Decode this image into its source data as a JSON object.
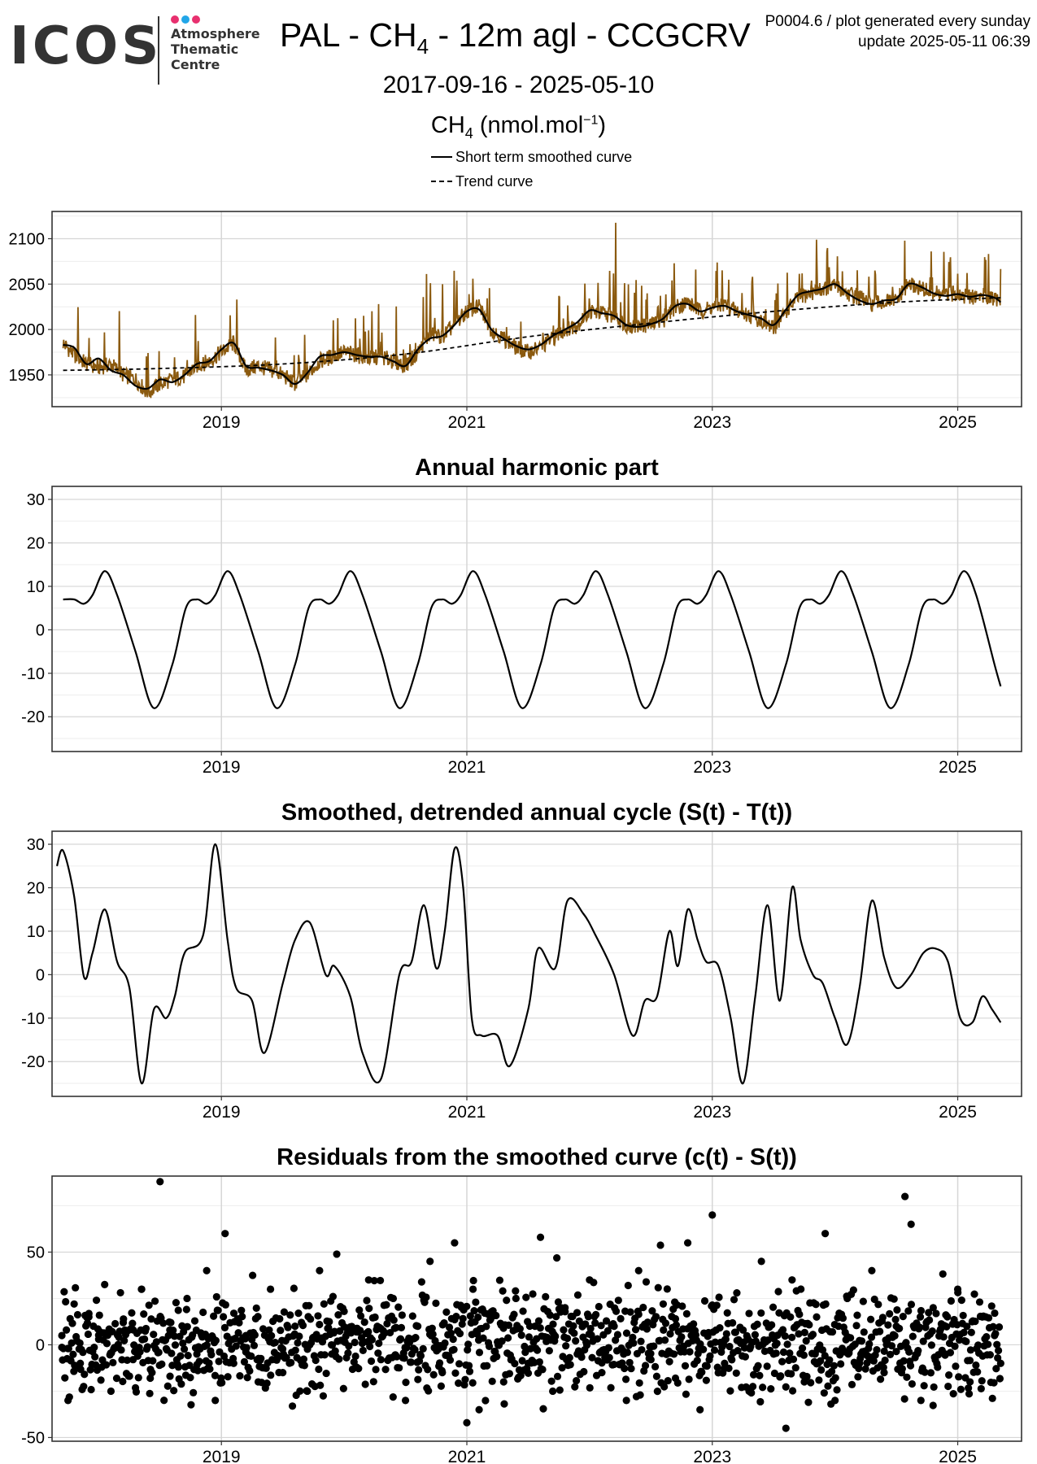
{
  "header": {
    "logo_text": "ICOS",
    "logo_tagline": "Atmosphere\nThematic\nCentre",
    "logo_dot_colors": [
      "#e8306f",
      "#22a6e8",
      "#e8306f"
    ],
    "title_pre": "PAL - CH",
    "title_sub": "4",
    "title_post": " - 12m agl - CCGCRV",
    "meta_line1": "P0004.6 / plot generated every sunday",
    "meta_line2": "update  2025-05-11 06:39",
    "date_range": "2017-09-16 - 2025-05-10",
    "unit_pre": "CH",
    "unit_sub": "4",
    "unit_mid": " (nmol.mol",
    "unit_sup": "−1",
    "unit_post": ")"
  },
  "legend": {
    "items": [
      {
        "label": "Short term smoothed curve",
        "style": "solid"
      },
      {
        "label": "Trend curve",
        "style": "dashed"
      }
    ]
  },
  "colors": {
    "observations": "#8b5a0f",
    "curves": "#000000",
    "grid_major": "#d6d6d6",
    "grid_minor": "#eeeeee",
    "panel_border": "#333333"
  },
  "chart_data": [
    {
      "id": "ch4",
      "type": "line",
      "title": "",
      "xlabel": "",
      "ylabel": "",
      "xlim": [
        2017.62,
        2025.52
      ],
      "ylim": [
        1915,
        2130
      ],
      "xticks": [
        2019,
        2021,
        2023,
        2025
      ],
      "yticks": [
        1950,
        2000,
        2050,
        2100
      ],
      "grid": true,
      "series": [
        {
          "name": "observations",
          "style": "daily",
          "x": [
            2017.71,
            2017.8,
            2017.9,
            2018.0,
            2018.1,
            2018.2,
            2018.3,
            2018.4,
            2018.5,
            2018.6,
            2018.7,
            2018.8,
            2018.9,
            2019.0,
            2019.1,
            2019.2,
            2019.3,
            2019.4,
            2019.5,
            2019.6,
            2019.7,
            2019.8,
            2019.9,
            2020.0,
            2020.1,
            2020.2,
            2020.3,
            2020.4,
            2020.5,
            2020.6,
            2020.7,
            2020.8,
            2020.9,
            2021.0,
            2021.1,
            2021.2,
            2021.3,
            2021.4,
            2021.5,
            2021.6,
            2021.7,
            2021.8,
            2021.9,
            2022.0,
            2022.1,
            2022.2,
            2022.3,
            2022.4,
            2022.5,
            2022.6,
            2022.7,
            2022.8,
            2022.9,
            2023.0,
            2023.1,
            2023.2,
            2023.3,
            2023.4,
            2023.5,
            2023.6,
            2023.7,
            2023.8,
            2023.9,
            2024.0,
            2024.1,
            2024.2,
            2024.3,
            2024.4,
            2024.5,
            2024.6,
            2024.7,
            2024.8,
            2024.9,
            2025.0,
            2025.1,
            2025.2,
            2025.3,
            2025.35
          ],
          "y": [
            1985,
            1972,
            1962,
            1958,
            1962,
            1950,
            1945,
            1930,
            1940,
            1945,
            1948,
            1960,
            1965,
            1975,
            1985,
            1955,
            1960,
            1955,
            1950,
            1940,
            1950,
            1965,
            1970,
            1975,
            1972,
            1968,
            1970,
            1965,
            1960,
            1975,
            1995,
            1992,
            2005,
            2020,
            2025,
            2000,
            1990,
            1980,
            1975,
            1980,
            1990,
            2000,
            2005,
            2020,
            2018,
            2015,
            2005,
            2003,
            2005,
            2010,
            2025,
            2030,
            2020,
            2025,
            2028,
            2020,
            2015,
            2010,
            2000,
            2020,
            2035,
            2040,
            2045,
            2048,
            2040,
            2035,
            2028,
            2030,
            2032,
            2050,
            2045,
            2040,
            2038,
            2040,
            2035,
            2038,
            2035,
            2032
          ]
        },
        {
          "name": "Short term smoothed curve",
          "style": "solid",
          "x": [
            2017.71,
            2017.8,
            2017.9,
            2018.0,
            2018.1,
            2018.2,
            2018.3,
            2018.4,
            2018.5,
            2018.6,
            2018.7,
            2018.8,
            2018.9,
            2019.0,
            2019.1,
            2019.2,
            2019.3,
            2019.4,
            2019.5,
            2019.6,
            2019.7,
            2019.8,
            2019.9,
            2020.0,
            2020.1,
            2020.2,
            2020.3,
            2020.4,
            2020.5,
            2020.6,
            2020.7,
            2020.8,
            2020.9,
            2021.0,
            2021.1,
            2021.2,
            2021.3,
            2021.4,
            2021.5,
            2021.6,
            2021.7,
            2021.8,
            2021.9,
            2022.0,
            2022.1,
            2022.2,
            2022.3,
            2022.4,
            2022.5,
            2022.6,
            2022.7,
            2022.8,
            2022.9,
            2023.0,
            2023.1,
            2023.2,
            2023.3,
            2023.4,
            2023.5,
            2023.6,
            2023.7,
            2023.8,
            2023.9,
            2024.0,
            2024.1,
            2024.2,
            2024.3,
            2024.4,
            2024.5,
            2024.6,
            2024.7,
            2024.8,
            2024.9,
            2025.0,
            2025.1,
            2025.2,
            2025.3,
            2025.35
          ],
          "y": [
            1983,
            1980,
            1962,
            1968,
            1955,
            1950,
            1938,
            1935,
            1945,
            1942,
            1950,
            1962,
            1965,
            1978,
            1985,
            1960,
            1958,
            1955,
            1950,
            1940,
            1952,
            1970,
            1972,
            1975,
            1972,
            1970,
            1970,
            1965,
            1960,
            1978,
            1990,
            1993,
            2005,
            2020,
            2022,
            2000,
            1990,
            1982,
            1978,
            1983,
            1993,
            2000,
            2008,
            2021,
            2018,
            2015,
            2005,
            2003,
            2006,
            2012,
            2026,
            2028,
            2020,
            2024,
            2026,
            2020,
            2016,
            2012,
            2005,
            2022,
            2038,
            2042,
            2045,
            2050,
            2040,
            2032,
            2028,
            2032,
            2034,
            2050,
            2047,
            2040,
            2037,
            2039,
            2036,
            2038,
            2035,
            2030
          ]
        },
        {
          "name": "Trend curve",
          "style": "dashed",
          "x": [
            2017.71,
            2018.5,
            2019.5,
            2020.5,
            2021.5,
            2022.5,
            2023.5,
            2024.5,
            2025.35
          ],
          "y": [
            1955,
            1957,
            1962,
            1973,
            1992,
            2007,
            2020,
            2030,
            2035
          ]
        }
      ]
    },
    {
      "id": "harmonic",
      "type": "line",
      "title": "Annual harmonic part",
      "xlabel": "",
      "ylabel": "",
      "xlim": [
        2017.62,
        2025.52
      ],
      "ylim": [
        -28,
        33
      ],
      "xticks": [
        2019,
        2021,
        2023,
        2025
      ],
      "yticks": [
        -20,
        -10,
        0,
        10,
        20,
        30
      ],
      "grid": true,
      "series": [
        {
          "name": "Annual harmonic",
          "style": "solid",
          "x": [
            2017.71,
            2017.8,
            2017.88,
            2017.95,
            2018.05,
            2018.15,
            2018.3,
            2018.45,
            2018.6,
            2018.71,
            2018.8,
            2018.88,
            2018.95,
            2019.05,
            2019.15,
            2019.3,
            2019.45,
            2019.6,
            2019.71,
            2019.8,
            2019.88,
            2019.95,
            2020.05,
            2020.15,
            2020.3,
            2020.45,
            2020.6,
            2020.71,
            2020.8,
            2020.88,
            2020.95,
            2021.05,
            2021.15,
            2021.3,
            2021.45,
            2021.6,
            2021.71,
            2021.8,
            2021.88,
            2021.95,
            2022.05,
            2022.15,
            2022.3,
            2022.45,
            2022.6,
            2022.71,
            2022.8,
            2022.88,
            2022.95,
            2023.05,
            2023.15,
            2023.3,
            2023.45,
            2023.6,
            2023.71,
            2023.8,
            2023.88,
            2023.95,
            2024.05,
            2024.15,
            2024.3,
            2024.45,
            2024.6,
            2024.71,
            2024.8,
            2024.88,
            2024.95,
            2025.05,
            2025.15,
            2025.3,
            2025.35
          ],
          "y": [
            7,
            7,
            6,
            8,
            13.5,
            8,
            -5,
            -18,
            -8,
            5,
            7,
            6,
            8,
            13.5,
            8,
            -5,
            -18,
            -8,
            5,
            7,
            6,
            8,
            13.5,
            8,
            -5,
            -18,
            -8,
            5,
            7,
            6,
            8,
            13.5,
            8,
            -5,
            -18,
            -8,
            5,
            7,
            6,
            8,
            13.5,
            8,
            -5,
            -18,
            -8,
            5,
            7,
            6,
            8,
            13.5,
            8,
            -5,
            -18,
            -8,
            5,
            7,
            6,
            8,
            13.5,
            8,
            -5,
            -18,
            -8,
            5,
            7,
            6,
            8,
            13.5,
            8,
            -8,
            -13
          ]
        }
      ]
    },
    {
      "id": "detrended",
      "type": "line",
      "title": "Smoothed, detrended annual cycle (S(t) - T(t))",
      "xlabel": "",
      "ylabel": "",
      "xlim": [
        2017.62,
        2025.52
      ],
      "ylim": [
        -28,
        33
      ],
      "xticks": [
        2019,
        2021,
        2023,
        2025
      ],
      "yticks": [
        -20,
        -10,
        0,
        10,
        20,
        30
      ],
      "grid": true,
      "series": [
        {
          "name": "Detrended cycle",
          "style": "solid",
          "x": [
            2017.66,
            2017.71,
            2017.8,
            2017.88,
            2017.95,
            2018.05,
            2018.15,
            2018.25,
            2018.35,
            2018.45,
            2018.55,
            2018.62,
            2018.7,
            2018.85,
            2018.95,
            2019.05,
            2019.12,
            2019.25,
            2019.35,
            2019.5,
            2019.6,
            2019.72,
            2019.85,
            2019.92,
            2020.05,
            2020.15,
            2020.3,
            2020.45,
            2020.55,
            2020.65,
            2020.75,
            2020.82,
            2020.9,
            2020.97,
            2021.04,
            2021.12,
            2021.25,
            2021.35,
            2021.5,
            2021.58,
            2021.72,
            2021.82,
            2021.95,
            2022.05,
            2022.2,
            2022.35,
            2022.45,
            2022.55,
            2022.65,
            2022.72,
            2022.8,
            2022.88,
            2022.95,
            2023.05,
            2023.15,
            2023.25,
            2023.35,
            2023.45,
            2023.55,
            2023.65,
            2023.72,
            2023.82,
            2023.9,
            2024.0,
            2024.1,
            2024.2,
            2024.3,
            2024.4,
            2024.5,
            2024.62,
            2024.72,
            2024.82,
            2024.92,
            2025.02,
            2025.12,
            2025.2,
            2025.28,
            2025.35
          ],
          "y": [
            25,
            28.5,
            18,
            -0.5,
            5,
            15,
            3,
            -3,
            -25,
            -8,
            -10,
            -5,
            5,
            9,
            30,
            8,
            -3,
            -6,
            -18,
            -2,
            8,
            12,
            0,
            2,
            -5,
            -18,
            -24,
            0,
            3,
            16,
            1.5,
            10,
            29,
            20,
            -10,
            -14,
            -14,
            -21,
            -8,
            6,
            1.5,
            17,
            14,
            9,
            0,
            -14,
            -6,
            -5,
            10,
            2,
            15,
            8,
            3,
            2,
            -10,
            -25,
            -5,
            16,
            -6,
            20,
            8,
            0,
            -2,
            -10,
            -16,
            -3,
            17,
            4,
            -3,
            0,
            5,
            6,
            3,
            -10,
            -11,
            -5,
            -8,
            -11
          ]
        }
      ]
    },
    {
      "id": "residuals",
      "type": "scatter",
      "title": "Residuals from the smoothed curve (c(t) - S(t))",
      "xlabel": "",
      "ylabel": "",
      "xlim": [
        2017.62,
        2025.52
      ],
      "ylim": [
        -52,
        91
      ],
      "xticks": [
        2019,
        2021,
        2023,
        2025
      ],
      "yticks": [
        -50,
        0,
        50
      ],
      "grid": true,
      "series": [
        {
          "name": "Residuals",
          "x": [
            2017.7,
            2017.75,
            2017.8,
            2017.85,
            2017.92,
            2018.0,
            2018.1,
            2018.2,
            2018.28,
            2018.35,
            2018.42,
            2018.5,
            2018.58,
            2018.65,
            2018.72,
            2018.8,
            2018.88,
            2018.95,
            2019.03,
            2019.1,
            2019.2,
            2019.3,
            2019.4,
            2019.5,
            2019.6,
            2019.7,
            2019.8,
            2019.9,
            2020.0,
            2020.1,
            2020.2,
            2020.3,
            2020.4,
            2020.5,
            2020.6,
            2020.7,
            2020.8,
            2020.9,
            2021.0,
            2021.05,
            2021.1,
            2021.2,
            2021.3,
            2021.4,
            2021.5,
            2021.6,
            2021.7,
            2021.8,
            2021.9,
            2022.0,
            2022.1,
            2022.2,
            2022.3,
            2022.4,
            2022.5,
            2022.6,
            2022.7,
            2022.8,
            2022.9,
            2023.0,
            2023.1,
            2023.2,
            2023.3,
            2023.4,
            2023.5,
            2023.6,
            2023.65,
            2023.75,
            2023.85,
            2023.92,
            2024.0,
            2024.1,
            2024.2,
            2024.3,
            2024.4,
            2024.5,
            2024.57,
            2024.62,
            2024.7,
            2024.8,
            2024.9,
            2025.0,
            2025.1,
            2025.2,
            2025.3,
            2025.35
          ],
          "y": [
            5,
            -30,
            22,
            -10,
            15,
            3,
            -25,
            12,
            -8,
            30,
            -18,
            88,
            8,
            -12,
            25,
            -5,
            40,
            -30,
            60,
            -10,
            5,
            -20,
            30,
            -15,
            10,
            -25,
            40,
            -5,
            18,
            -12,
            35,
            -8,
            25,
            -30,
            10,
            45,
            -15,
            55,
            -42,
            30,
            -35,
            15,
            -20,
            25,
            -10,
            58,
            -25,
            20,
            -5,
            35,
            -15,
            10,
            -30,
            40,
            -8,
            22,
            -18,
            55,
            -35,
            70,
            -10,
            28,
            -25,
            45,
            -5,
            -45,
            35,
            -20,
            15,
            60,
            -30,
            25,
            -10,
            40,
            -15,
            10,
            80,
            65,
            -30,
            20,
            -5,
            30,
            -20,
            15,
            5,
            -10
          ]
        }
      ]
    }
  ]
}
